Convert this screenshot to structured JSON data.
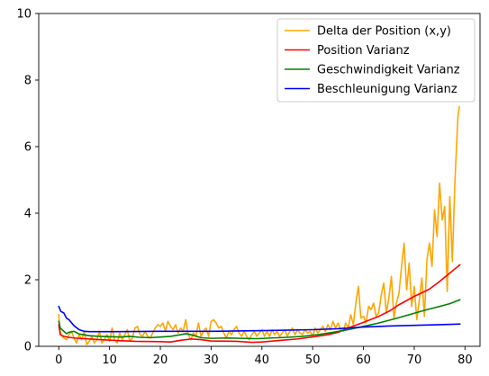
{
  "chart_data": {
    "type": "line",
    "title": "",
    "xlabel": "",
    "ylabel": "",
    "xlim": [
      -3.95,
      82.95
    ],
    "ylim": [
      0,
      10
    ],
    "xticks": [
      0,
      10,
      20,
      30,
      40,
      50,
      60,
      70,
      80
    ],
    "xtick_labels": [
      "0",
      "10",
      "20",
      "30",
      "40",
      "50",
      "60",
      "70",
      "80"
    ],
    "yticks": [
      0,
      2,
      4,
      6,
      8,
      10
    ],
    "ytick_labels": [
      "0",
      "2",
      "4",
      "6",
      "8",
      "10"
    ],
    "grid": false,
    "legend_position": "top-right",
    "series": [
      {
        "name": "Delta der Position (x,y)",
        "color": "#ffa500",
        "points": [
          [
            0.0,
            0.95
          ],
          [
            0.2,
            0.55
          ],
          [
            0.4,
            0.35
          ],
          [
            0.7,
            0.3
          ],
          [
            1.0,
            0.25
          ],
          [
            1.5,
            0.2
          ],
          [
            2.0,
            0.35
          ],
          [
            2.5,
            0.45
          ],
          [
            3.0,
            0.25
          ],
          [
            3.5,
            0.1
          ],
          [
            4.0,
            0.35
          ],
          [
            4.5,
            0.2
          ],
          [
            5.0,
            0.45
          ],
          [
            5.5,
            0.05
          ],
          [
            6.0,
            0.15
          ],
          [
            6.5,
            0.3
          ],
          [
            7.0,
            0.1
          ],
          [
            7.5,
            0.2
          ],
          [
            8.0,
            0.45
          ],
          [
            8.5,
            0.1
          ],
          [
            9.0,
            0.2
          ],
          [
            9.5,
            0.35
          ],
          [
            10.0,
            0.15
          ],
          [
            10.5,
            0.55
          ],
          [
            11.0,
            0.2
          ],
          [
            11.5,
            0.1
          ],
          [
            12.0,
            0.4
          ],
          [
            12.5,
            0.2
          ],
          [
            13.0,
            0.35
          ],
          [
            13.5,
            0.5
          ],
          [
            14.0,
            0.15
          ],
          [
            14.5,
            0.25
          ],
          [
            15.0,
            0.55
          ],
          [
            15.5,
            0.6
          ],
          [
            16.0,
            0.35
          ],
          [
            16.5,
            0.3
          ],
          [
            17.0,
            0.45
          ],
          [
            17.5,
            0.3
          ],
          [
            18.0,
            0.25
          ],
          [
            18.5,
            0.4
          ],
          [
            19.0,
            0.55
          ],
          [
            19.5,
            0.65
          ],
          [
            20.0,
            0.6
          ],
          [
            20.5,
            0.7
          ],
          [
            21.0,
            0.45
          ],
          [
            21.5,
            0.75
          ],
          [
            22.0,
            0.6
          ],
          [
            22.5,
            0.5
          ],
          [
            23.0,
            0.65
          ],
          [
            23.5,
            0.4
          ],
          [
            24.0,
            0.55
          ],
          [
            24.5,
            0.45
          ],
          [
            25.0,
            0.8
          ],
          [
            25.5,
            0.35
          ],
          [
            26.0,
            0.2
          ],
          [
            26.5,
            0.4
          ],
          [
            27.0,
            0.3
          ],
          [
            27.5,
            0.7
          ],
          [
            28.0,
            0.3
          ],
          [
            28.5,
            0.45
          ],
          [
            29.0,
            0.55
          ],
          [
            29.5,
            0.3
          ],
          [
            30.0,
            0.75
          ],
          [
            30.5,
            0.8
          ],
          [
            31.0,
            0.7
          ],
          [
            31.5,
            0.55
          ],
          [
            32.0,
            0.6
          ],
          [
            32.5,
            0.4
          ],
          [
            33.0,
            0.25
          ],
          [
            33.5,
            0.45
          ],
          [
            34.0,
            0.35
          ],
          [
            34.5,
            0.5
          ],
          [
            35.0,
            0.6
          ],
          [
            35.5,
            0.4
          ],
          [
            36.0,
            0.3
          ],
          [
            36.5,
            0.45
          ],
          [
            37.0,
            0.3
          ],
          [
            37.5,
            0.2
          ],
          [
            38.0,
            0.35
          ],
          [
            38.5,
            0.45
          ],
          [
            39.0,
            0.3
          ],
          [
            39.5,
            0.4
          ],
          [
            40.0,
            0.5
          ],
          [
            40.5,
            0.3
          ],
          [
            41.0,
            0.45
          ],
          [
            41.5,
            0.3
          ],
          [
            42.0,
            0.5
          ],
          [
            42.5,
            0.35
          ],
          [
            43.0,
            0.45
          ],
          [
            43.5,
            0.3
          ],
          [
            44.0,
            0.4
          ],
          [
            44.5,
            0.5
          ],
          [
            45.0,
            0.3
          ],
          [
            45.5,
            0.45
          ],
          [
            46.0,
            0.55
          ],
          [
            46.5,
            0.35
          ],
          [
            47.0,
            0.5
          ],
          [
            47.5,
            0.4
          ],
          [
            48.0,
            0.35
          ],
          [
            48.5,
            0.5
          ],
          [
            49.0,
            0.4
          ],
          [
            49.5,
            0.45
          ],
          [
            50.0,
            0.3
          ],
          [
            50.5,
            0.55
          ],
          [
            51.0,
            0.4
          ],
          [
            51.5,
            0.5
          ],
          [
            52.0,
            0.6
          ],
          [
            52.5,
            0.45
          ],
          [
            53.0,
            0.65
          ],
          [
            53.5,
            0.5
          ],
          [
            54.0,
            0.75
          ],
          [
            54.5,
            0.55
          ],
          [
            55.0,
            0.7
          ],
          [
            55.5,
            0.5
          ],
          [
            56.0,
            0.45
          ],
          [
            56.5,
            0.7
          ],
          [
            57.0,
            0.55
          ],
          [
            57.5,
            0.95
          ],
          [
            58.0,
            0.65
          ],
          [
            58.5,
            1.3
          ],
          [
            59.0,
            1.8
          ],
          [
            59.5,
            0.85
          ],
          [
            60.0,
            0.9
          ],
          [
            60.5,
            0.7
          ],
          [
            61.0,
            1.2
          ],
          [
            61.5,
            1.1
          ],
          [
            62.0,
            1.3
          ],
          [
            62.5,
            0.9
          ],
          [
            63.0,
            1.0
          ],
          [
            63.5,
            1.55
          ],
          [
            64.0,
            1.9
          ],
          [
            64.5,
            1.0
          ],
          [
            65.0,
            1.45
          ],
          [
            65.5,
            2.1
          ],
          [
            66.0,
            0.85
          ],
          [
            66.5,
            1.3
          ],
          [
            67.0,
            1.6
          ],
          [
            67.5,
            2.4
          ],
          [
            68.0,
            3.1
          ],
          [
            68.5,
            1.7
          ],
          [
            69.0,
            2.5
          ],
          [
            69.5,
            1.2
          ],
          [
            70.0,
            1.8
          ],
          [
            70.5,
            0.8
          ],
          [
            71.0,
            1.4
          ],
          [
            71.5,
            2.05
          ],
          [
            72.0,
            0.9
          ],
          [
            72.5,
            2.6
          ],
          [
            73.0,
            3.1
          ],
          [
            73.5,
            2.4
          ],
          [
            74.0,
            4.1
          ],
          [
            74.5,
            3.3
          ],
          [
            75.0,
            4.9
          ],
          [
            75.5,
            3.8
          ],
          [
            76.0,
            4.2
          ],
          [
            76.5,
            1.65
          ],
          [
            77.0,
            4.5
          ],
          [
            77.5,
            2.55
          ],
          [
            78.0,
            4.9
          ],
          [
            78.3,
            5.9
          ],
          [
            78.6,
            6.9
          ],
          [
            78.9,
            7.2
          ]
        ]
      },
      {
        "name": "Position Varianz",
        "color": "#ff0000",
        "points": [
          [
            0.0,
            0.65
          ],
          [
            0.3,
            0.35
          ],
          [
            1,
            0.3
          ],
          [
            2,
            0.27
          ],
          [
            3,
            0.25
          ],
          [
            5,
            0.23
          ],
          [
            8,
            0.2
          ],
          [
            12,
            0.17
          ],
          [
            15,
            0.15
          ],
          [
            20,
            0.14
          ],
          [
            22,
            0.13
          ],
          [
            24,
            0.18
          ],
          [
            26,
            0.22
          ],
          [
            28,
            0.2
          ],
          [
            30,
            0.16
          ],
          [
            35,
            0.15
          ],
          [
            38,
            0.12
          ],
          [
            40,
            0.13
          ],
          [
            43,
            0.17
          ],
          [
            47,
            0.22
          ],
          [
            50,
            0.28
          ],
          [
            53,
            0.35
          ],
          [
            55,
            0.42
          ],
          [
            57,
            0.55
          ],
          [
            60,
            0.72
          ],
          [
            63,
            0.9
          ],
          [
            65,
            1.05
          ],
          [
            67,
            1.25
          ],
          [
            70,
            1.5
          ],
          [
            73,
            1.72
          ],
          [
            75,
            1.95
          ],
          [
            77,
            2.2
          ],
          [
            79,
            2.45
          ]
        ]
      },
      {
        "name": "Geschwindigkeit Varianz",
        "color": "#008000",
        "points": [
          [
            0.0,
            0.75
          ],
          [
            0.3,
            0.55
          ],
          [
            1,
            0.45
          ],
          [
            1.5,
            0.38
          ],
          [
            2,
            0.42
          ],
          [
            3,
            0.45
          ],
          [
            4,
            0.37
          ],
          [
            6,
            0.32
          ],
          [
            8,
            0.3
          ],
          [
            10,
            0.29
          ],
          [
            12,
            0.28
          ],
          [
            14,
            0.3
          ],
          [
            16,
            0.27
          ],
          [
            18,
            0.26
          ],
          [
            20,
            0.28
          ],
          [
            22,
            0.3
          ],
          [
            24,
            0.35
          ],
          [
            25,
            0.38
          ],
          [
            26,
            0.35
          ],
          [
            28,
            0.26
          ],
          [
            30,
            0.24
          ],
          [
            33,
            0.25
          ],
          [
            36,
            0.24
          ],
          [
            39,
            0.23
          ],
          [
            42,
            0.25
          ],
          [
            45,
            0.27
          ],
          [
            48,
            0.3
          ],
          [
            51,
            0.35
          ],
          [
            54,
            0.42
          ],
          [
            57,
            0.5
          ],
          [
            60,
            0.6
          ],
          [
            63,
            0.7
          ],
          [
            66,
            0.82
          ],
          [
            69,
            0.95
          ],
          [
            72,
            1.08
          ],
          [
            75,
            1.2
          ],
          [
            77,
            1.28
          ],
          [
            79,
            1.4
          ]
        ]
      },
      {
        "name": "Beschleunigung Varianz",
        "color": "#0000ff",
        "points": [
          [
            0.0,
            1.2
          ],
          [
            0.4,
            1.05
          ],
          [
            1,
            1.0
          ],
          [
            1.5,
            0.85
          ],
          [
            2,
            0.8
          ],
          [
            3,
            0.62
          ],
          [
            4,
            0.5
          ],
          [
            5,
            0.45
          ],
          [
            6,
            0.44
          ],
          [
            10,
            0.44
          ],
          [
            20,
            0.45
          ],
          [
            30,
            0.45
          ],
          [
            40,
            0.47
          ],
          [
            50,
            0.5
          ],
          [
            55,
            0.53
          ],
          [
            60,
            0.58
          ],
          [
            65,
            0.61
          ],
          [
            70,
            0.63
          ],
          [
            75,
            0.65
          ],
          [
            79,
            0.67
          ]
        ]
      }
    ]
  }
}
